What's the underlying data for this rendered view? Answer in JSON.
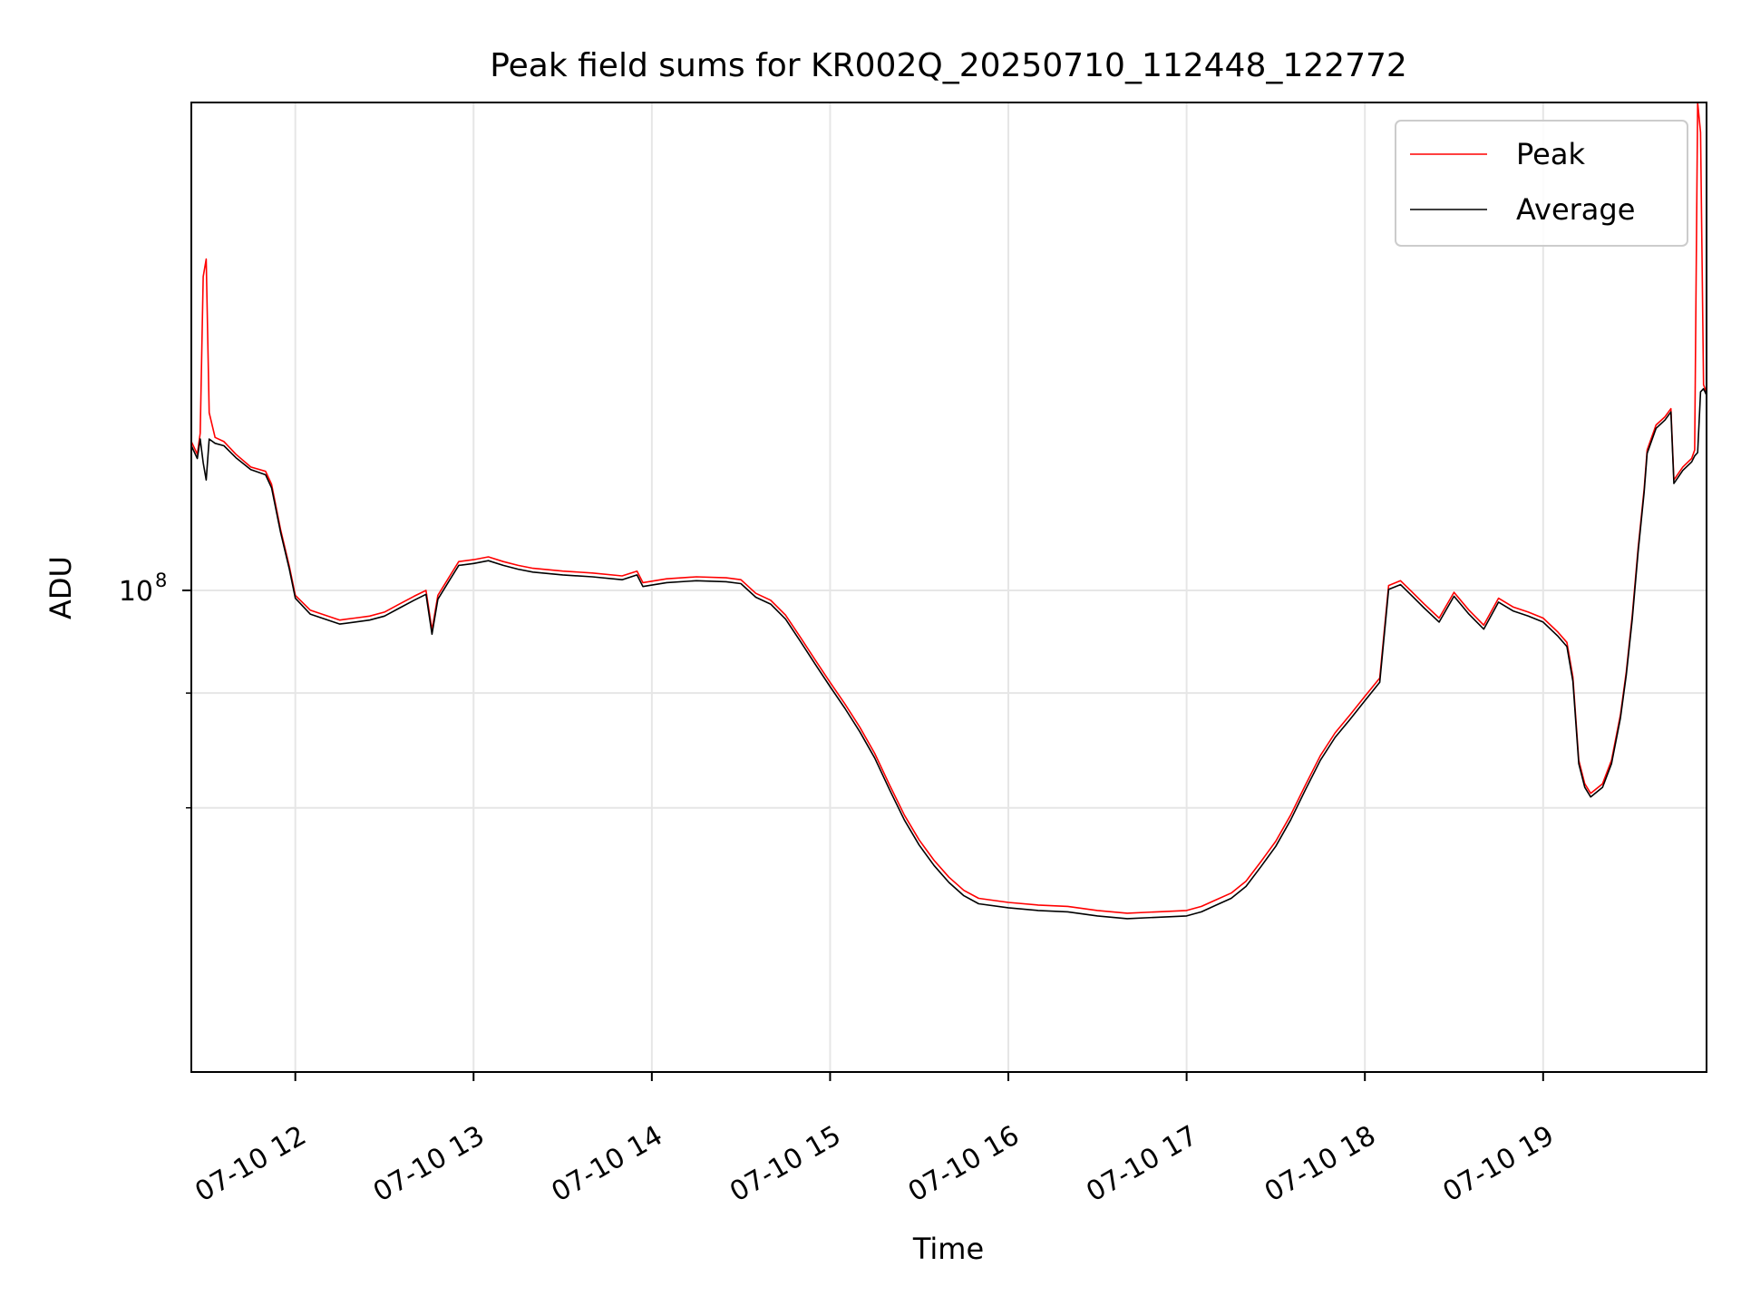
{
  "chart_data": {
    "type": "line",
    "title": "Peak field sums for KR002Q_20250710_112448_122772",
    "xlabel": "Time",
    "ylabel": "ADU",
    "y_scale": "log",
    "grid": true,
    "legend_position": "top-right",
    "x_range": [
      "2025-07-10 11:25",
      "2025-07-10 19:55"
    ],
    "y_range": [
      61000000,
      165000000
    ],
    "x_ticks": [
      "07-10 12",
      "07-10 13",
      "07-10 14",
      "07-10 15",
      "07-10 16",
      "07-10 17",
      "07-10 18",
      "07-10 19"
    ],
    "x_tick_times": [
      "2025-07-10 12:00",
      "2025-07-10 13:00",
      "2025-07-10 14:00",
      "2025-07-10 15:00",
      "2025-07-10 16:00",
      "2025-07-10 17:00",
      "2025-07-10 18:00",
      "2025-07-10 19:00"
    ],
    "y_ticks": [
      {
        "value": 100000000,
        "base": "10",
        "exp": "8"
      }
    ],
    "y_minor_gridlines": [
      90000000,
      80000000
    ],
    "series": [
      {
        "name": "Peak",
        "color": "#ff0000",
        "points": [
          [
            "2025-07-10 11:25",
            116500000
          ],
          [
            "2025-07-10 11:27",
            115000000
          ],
          [
            "2025-07-10 11:28",
            117500000
          ],
          [
            "2025-07-10 11:29",
            138000000
          ],
          [
            "2025-07-10 11:30",
            140500000
          ],
          [
            "2025-07-10 11:31",
            120000000
          ],
          [
            "2025-07-10 11:33",
            117000000
          ],
          [
            "2025-07-10 11:36",
            116500000
          ],
          [
            "2025-07-10 11:40",
            115000000
          ],
          [
            "2025-07-10 11:45",
            113500000
          ],
          [
            "2025-07-10 11:50",
            113000000
          ],
          [
            "2025-07-10 11:52",
            111500000
          ],
          [
            "2025-07-10 11:55",
            106500000
          ],
          [
            "2025-07-10 11:58",
            102500000
          ],
          [
            "2025-07-10 12:00",
            99500000
          ],
          [
            "2025-07-10 12:05",
            98000000
          ],
          [
            "2025-07-10 12:10",
            97500000
          ],
          [
            "2025-07-10 12:15",
            97000000
          ],
          [
            "2025-07-10 12:20",
            97200000
          ],
          [
            "2025-07-10 12:25",
            97400000
          ],
          [
            "2025-07-10 12:30",
            97800000
          ],
          [
            "2025-07-10 12:35",
            98600000
          ],
          [
            "2025-07-10 12:40",
            99400000
          ],
          [
            "2025-07-10 12:44",
            100000000
          ],
          [
            "2025-07-10 12:46",
            96000000
          ],
          [
            "2025-07-10 12:48",
            99500000
          ],
          [
            "2025-07-10 12:52",
            101500000
          ],
          [
            "2025-07-10 12:55",
            103000000
          ],
          [
            "2025-07-10 13:00",
            103200000
          ],
          [
            "2025-07-10 13:05",
            103500000
          ],
          [
            "2025-07-10 13:10",
            103000000
          ],
          [
            "2025-07-10 13:15",
            102600000
          ],
          [
            "2025-07-10 13:20",
            102300000
          ],
          [
            "2025-07-10 13:30",
            102000000
          ],
          [
            "2025-07-10 13:40",
            101800000
          ],
          [
            "2025-07-10 13:50",
            101500000
          ],
          [
            "2025-07-10 13:55",
            102000000
          ],
          [
            "2025-07-10 13:57",
            100800000
          ],
          [
            "2025-07-10 14:05",
            101200000
          ],
          [
            "2025-07-10 14:15",
            101400000
          ],
          [
            "2025-07-10 14:25",
            101300000
          ],
          [
            "2025-07-10 14:30",
            101100000
          ],
          [
            "2025-07-10 14:35",
            99700000
          ],
          [
            "2025-07-10 14:40",
            99000000
          ],
          [
            "2025-07-10 14:45",
            97500000
          ],
          [
            "2025-07-10 14:50",
            95300000
          ],
          [
            "2025-07-10 14:55",
            93100000
          ],
          [
            "2025-07-10 15:00",
            91000000
          ],
          [
            "2025-07-10 15:05",
            89000000
          ],
          [
            "2025-07-10 15:10",
            86900000
          ],
          [
            "2025-07-10 15:15",
            84600000
          ],
          [
            "2025-07-10 15:20",
            81900000
          ],
          [
            "2025-07-10 15:25",
            79400000
          ],
          [
            "2025-07-10 15:30",
            77400000
          ],
          [
            "2025-07-10 15:35",
            75800000
          ],
          [
            "2025-07-10 15:40",
            74500000
          ],
          [
            "2025-07-10 15:45",
            73500000
          ],
          [
            "2025-07-10 15:50",
            72900000
          ],
          [
            "2025-07-10 16:00",
            72600000
          ],
          [
            "2025-07-10 16:10",
            72400000
          ],
          [
            "2025-07-10 16:20",
            72300000
          ],
          [
            "2025-07-10 16:30",
            72000000
          ],
          [
            "2025-07-10 16:40",
            71800000
          ],
          [
            "2025-07-10 16:50",
            71900000
          ],
          [
            "2025-07-10 17:00",
            72000000
          ],
          [
            "2025-07-10 17:05",
            72300000
          ],
          [
            "2025-07-10 17:10",
            72800000
          ],
          [
            "2025-07-10 17:15",
            73300000
          ],
          [
            "2025-07-10 17:20",
            74200000
          ],
          [
            "2025-07-10 17:25",
            75700000
          ],
          [
            "2025-07-10 17:30",
            77300000
          ],
          [
            "2025-07-10 17:35",
            79400000
          ],
          [
            "2025-07-10 17:40",
            81900000
          ],
          [
            "2025-07-10 17:45",
            84400000
          ],
          [
            "2025-07-10 17:50",
            86400000
          ],
          [
            "2025-07-10 17:55",
            88000000
          ],
          [
            "2025-07-10 18:00",
            89700000
          ],
          [
            "2025-07-10 18:05",
            91400000
          ],
          [
            "2025-07-10 18:08",
            100500000
          ],
          [
            "2025-07-10 18:12",
            101000000
          ],
          [
            "2025-07-10 18:16",
            99800000
          ],
          [
            "2025-07-10 18:20",
            98600000
          ],
          [
            "2025-07-10 18:25",
            97200000
          ],
          [
            "2025-07-10 18:30",
            99800000
          ],
          [
            "2025-07-10 18:35",
            98000000
          ],
          [
            "2025-07-10 18:40",
            96500000
          ],
          [
            "2025-07-10 18:45",
            99200000
          ],
          [
            "2025-07-10 18:50",
            98300000
          ],
          [
            "2025-07-10 18:55",
            97800000
          ],
          [
            "2025-07-10 19:00",
            97200000
          ],
          [
            "2025-07-10 19:05",
            95800000
          ],
          [
            "2025-07-10 19:08",
            94800000
          ],
          [
            "2025-07-10 19:10",
            91500000
          ],
          [
            "2025-07-10 19:12",
            84000000
          ],
          [
            "2025-07-10 19:14",
            82000000
          ],
          [
            "2025-07-10 19:16",
            81200000
          ],
          [
            "2025-07-10 19:20",
            82000000
          ],
          [
            "2025-07-10 19:23",
            84000000
          ],
          [
            "2025-07-10 19:26",
            88000000
          ],
          [
            "2025-07-10 19:28",
            92000000
          ],
          [
            "2025-07-10 19:30",
            97500000
          ],
          [
            "2025-07-10 19:32",
            104500000
          ],
          [
            "2025-07-10 19:34",
            111000000
          ],
          [
            "2025-07-10 19:35",
            115500000
          ],
          [
            "2025-07-10 19:38",
            118500000
          ],
          [
            "2025-07-10 19:41",
            119500000
          ],
          [
            "2025-07-10 19:43",
            120500000
          ],
          [
            "2025-07-10 19:44",
            112000000
          ],
          [
            "2025-07-10 19:47",
            113500000
          ],
          [
            "2025-07-10 19:50",
            114500000
          ],
          [
            "2025-07-10 19:51",
            115500000
          ],
          [
            "2025-07-10 19:52",
            165000000
          ],
          [
            "2025-07-10 19:53",
            160000000
          ],
          [
            "2025-07-10 19:54",
            123500000
          ],
          [
            "2025-07-10 19:55",
            122500000
          ]
        ]
      },
      {
        "name": "Average",
        "color": "#000000",
        "points": [
          [
            "2025-07-10 11:25",
            116000000
          ],
          [
            "2025-07-10 11:27",
            114500000
          ],
          [
            "2025-07-10 11:28",
            116800000
          ],
          [
            "2025-07-10 11:29",
            114000000
          ],
          [
            "2025-07-10 11:30",
            112000000
          ],
          [
            "2025-07-10 11:31",
            116800000
          ],
          [
            "2025-07-10 11:33",
            116300000
          ],
          [
            "2025-07-10 11:36",
            116000000
          ],
          [
            "2025-07-10 11:40",
            114600000
          ],
          [
            "2025-07-10 11:45",
            113200000
          ],
          [
            "2025-07-10 11:50",
            112600000
          ],
          [
            "2025-07-10 11:52",
            111100000
          ],
          [
            "2025-07-10 11:55",
            106200000
          ],
          [
            "2025-07-10 11:58",
            102200000
          ],
          [
            "2025-07-10 12:00",
            99200000
          ],
          [
            "2025-07-10 12:05",
            97600000
          ],
          [
            "2025-07-10 12:10",
            97100000
          ],
          [
            "2025-07-10 12:15",
            96600000
          ],
          [
            "2025-07-10 12:20",
            96800000
          ],
          [
            "2025-07-10 12:25",
            97000000
          ],
          [
            "2025-07-10 12:30",
            97400000
          ],
          [
            "2025-07-10 12:35",
            98200000
          ],
          [
            "2025-07-10 12:40",
            99000000
          ],
          [
            "2025-07-10 12:44",
            99600000
          ],
          [
            "2025-07-10 12:46",
            95600000
          ],
          [
            "2025-07-10 12:48",
            99100000
          ],
          [
            "2025-07-10 12:52",
            101100000
          ],
          [
            "2025-07-10 12:55",
            102600000
          ],
          [
            "2025-07-10 13:00",
            102800000
          ],
          [
            "2025-07-10 13:05",
            103100000
          ],
          [
            "2025-07-10 13:10",
            102600000
          ],
          [
            "2025-07-10 13:15",
            102200000
          ],
          [
            "2025-07-10 13:20",
            101900000
          ],
          [
            "2025-07-10 13:30",
            101600000
          ],
          [
            "2025-07-10 13:40",
            101400000
          ],
          [
            "2025-07-10 13:50",
            101100000
          ],
          [
            "2025-07-10 13:55",
            101600000
          ],
          [
            "2025-07-10 13:57",
            100400000
          ],
          [
            "2025-07-10 14:05",
            100800000
          ],
          [
            "2025-07-10 14:15",
            101000000
          ],
          [
            "2025-07-10 14:25",
            100900000
          ],
          [
            "2025-07-10 14:30",
            100700000
          ],
          [
            "2025-07-10 14:35",
            99300000
          ],
          [
            "2025-07-10 14:40",
            98600000
          ],
          [
            "2025-07-10 14:45",
            97100000
          ],
          [
            "2025-07-10 14:50",
            94900000
          ],
          [
            "2025-07-10 14:55",
            92700000
          ],
          [
            "2025-07-10 15:00",
            90600000
          ],
          [
            "2025-07-10 15:05",
            88600000
          ],
          [
            "2025-07-10 15:10",
            86500000
          ],
          [
            "2025-07-10 15:15",
            84200000
          ],
          [
            "2025-07-10 15:20",
            81500000
          ],
          [
            "2025-07-10 15:25",
            79000000
          ],
          [
            "2025-07-10 15:30",
            77000000
          ],
          [
            "2025-07-10 15:35",
            75400000
          ],
          [
            "2025-07-10 15:40",
            74100000
          ],
          [
            "2025-07-10 15:45",
            73100000
          ],
          [
            "2025-07-10 15:50",
            72500000
          ],
          [
            "2025-07-10 16:00",
            72200000
          ],
          [
            "2025-07-10 16:10",
            72000000
          ],
          [
            "2025-07-10 16:20",
            71900000
          ],
          [
            "2025-07-10 16:30",
            71600000
          ],
          [
            "2025-07-10 16:40",
            71400000
          ],
          [
            "2025-07-10 16:50",
            71500000
          ],
          [
            "2025-07-10 17:00",
            71600000
          ],
          [
            "2025-07-10 17:05",
            71900000
          ],
          [
            "2025-07-10 17:10",
            72400000
          ],
          [
            "2025-07-10 17:15",
            72900000
          ],
          [
            "2025-07-10 17:20",
            73800000
          ],
          [
            "2025-07-10 17:25",
            75300000
          ],
          [
            "2025-07-10 17:30",
            76900000
          ],
          [
            "2025-07-10 17:35",
            79000000
          ],
          [
            "2025-07-10 17:40",
            81500000
          ],
          [
            "2025-07-10 17:45",
            84000000
          ],
          [
            "2025-07-10 17:50",
            86000000
          ],
          [
            "2025-07-10 17:55",
            87600000
          ],
          [
            "2025-07-10 18:00",
            89300000
          ],
          [
            "2025-07-10 18:05",
            91000000
          ],
          [
            "2025-07-10 18:08",
            100100000
          ],
          [
            "2025-07-10 18:12",
            100600000
          ],
          [
            "2025-07-10 18:16",
            99400000
          ],
          [
            "2025-07-10 18:20",
            98200000
          ],
          [
            "2025-07-10 18:25",
            96800000
          ],
          [
            "2025-07-10 18:30",
            99400000
          ],
          [
            "2025-07-10 18:35",
            97600000
          ],
          [
            "2025-07-10 18:40",
            96100000
          ],
          [
            "2025-07-10 18:45",
            98800000
          ],
          [
            "2025-07-10 18:50",
            97900000
          ],
          [
            "2025-07-10 18:55",
            97400000
          ],
          [
            "2025-07-10 19:00",
            96800000
          ],
          [
            "2025-07-10 19:05",
            95400000
          ],
          [
            "2025-07-10 19:08",
            94400000
          ],
          [
            "2025-07-10 19:10",
            91100000
          ],
          [
            "2025-07-10 19:12",
            83700000
          ],
          [
            "2025-07-10 19:14",
            81700000
          ],
          [
            "2025-07-10 19:16",
            80900000
          ],
          [
            "2025-07-10 19:20",
            81700000
          ],
          [
            "2025-07-10 19:23",
            83700000
          ],
          [
            "2025-07-10 19:26",
            87700000
          ],
          [
            "2025-07-10 19:28",
            91700000
          ],
          [
            "2025-07-10 19:30",
            97100000
          ],
          [
            "2025-07-10 19:32",
            104100000
          ],
          [
            "2025-07-10 19:34",
            110600000
          ],
          [
            "2025-07-10 19:35",
            115100000
          ],
          [
            "2025-07-10 19:38",
            118100000
          ],
          [
            "2025-07-10 19:41",
            119100000
          ],
          [
            "2025-07-10 19:43",
            120100000
          ],
          [
            "2025-07-10 19:44",
            111600000
          ],
          [
            "2025-07-10 19:47",
            113100000
          ],
          [
            "2025-07-10 19:50",
            114100000
          ],
          [
            "2025-07-10 19:51",
            114800000
          ],
          [
            "2025-07-10 19:52",
            115200000
          ],
          [
            "2025-07-10 19:53",
            122600000
          ],
          [
            "2025-07-10 19:54",
            123000000
          ],
          [
            "2025-07-10 19:55",
            122200000
          ]
        ]
      }
    ]
  }
}
